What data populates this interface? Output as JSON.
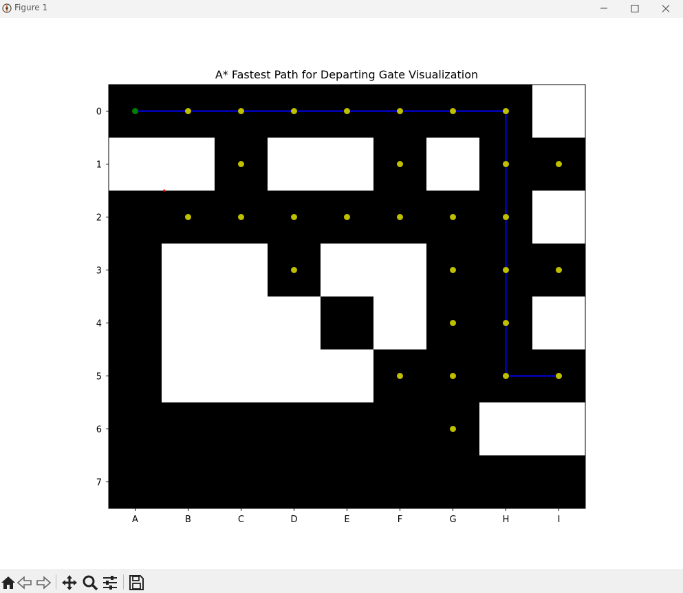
{
  "window": {
    "title": "Figure 1",
    "controls": [
      {
        "name": "minimize-button",
        "icon": "minimize-icon"
      },
      {
        "name": "maximize-button",
        "icon": "maximize-icon"
      },
      {
        "name": "close-button",
        "icon": "close-icon"
      }
    ]
  },
  "toolbar": {
    "buttons": [
      "home-icon",
      "back-arrow-icon",
      "forward-arrow-icon",
      "pan-icon",
      "zoom-icon",
      "configure-subplots-icon",
      "save-icon"
    ]
  },
  "chart_data": {
    "type": "heatmap",
    "title": "A* Fastest Path for Departing Gate Visualization",
    "xlabel": "",
    "ylabel": "",
    "x_ticks": [
      "A",
      "B",
      "C",
      "D",
      "E",
      "F",
      "G",
      "H",
      "I"
    ],
    "y_ticks": [
      "0",
      "1",
      "2",
      "3",
      "4",
      "5",
      "6",
      "7"
    ],
    "grid": [
      [
        0,
        0,
        0,
        0,
        0,
        0,
        0,
        0,
        1
      ],
      [
        1,
        1,
        0,
        1,
        1,
        0,
        1,
        0,
        0
      ],
      [
        0,
        0,
        0,
        0,
        0,
        0,
        0,
        0,
        1
      ],
      [
        0,
        1,
        1,
        0,
        1,
        1,
        0,
        0,
        0
      ],
      [
        0,
        1,
        1,
        1,
        0,
        1,
        0,
        0,
        1
      ],
      [
        0,
        1,
        1,
        1,
        1,
        0,
        0,
        0,
        0
      ],
      [
        0,
        0,
        0,
        0,
        0,
        0,
        0,
        1,
        1
      ],
      [
        0,
        0,
        0,
        0,
        0,
        0,
        0,
        0,
        0
      ]
    ],
    "cell_colors": {
      "0": "#000000",
      "1": "#ffffff"
    },
    "explored_points": [
      [
        1,
        0
      ],
      [
        2,
        0
      ],
      [
        3,
        0
      ],
      [
        4,
        0
      ],
      [
        5,
        0
      ],
      [
        6,
        0
      ],
      [
        7,
        0
      ],
      [
        2,
        1
      ],
      [
        5,
        1
      ],
      [
        7,
        1
      ],
      [
        8,
        1
      ],
      [
        1,
        2
      ],
      [
        2,
        2
      ],
      [
        3,
        2
      ],
      [
        4,
        2
      ],
      [
        5,
        2
      ],
      [
        6,
        2
      ],
      [
        7,
        2
      ],
      [
        3,
        3
      ],
      [
        6,
        3
      ],
      [
        7,
        3
      ],
      [
        8,
        3
      ],
      [
        6,
        4
      ],
      [
        7,
        4
      ],
      [
        5,
        5
      ],
      [
        6,
        5
      ],
      [
        7,
        5
      ],
      [
        8,
        5
      ],
      [
        6,
        6
      ]
    ],
    "explored_color": "#bfbf00",
    "start_point": [
      0,
      0
    ],
    "start_color": "#008000",
    "path": [
      [
        0,
        0
      ],
      [
        1,
        0
      ],
      [
        2,
        0
      ],
      [
        3,
        0
      ],
      [
        4,
        0
      ],
      [
        5,
        0
      ],
      [
        6,
        0
      ],
      [
        7,
        0
      ],
      [
        7,
        1
      ],
      [
        7,
        2
      ],
      [
        7,
        3
      ],
      [
        7,
        4
      ],
      [
        7,
        5
      ],
      [
        8,
        5
      ]
    ],
    "path_color": "#0000ff",
    "marker": [
      0.55,
      1.5
    ],
    "marker_color": "#ff0000"
  }
}
